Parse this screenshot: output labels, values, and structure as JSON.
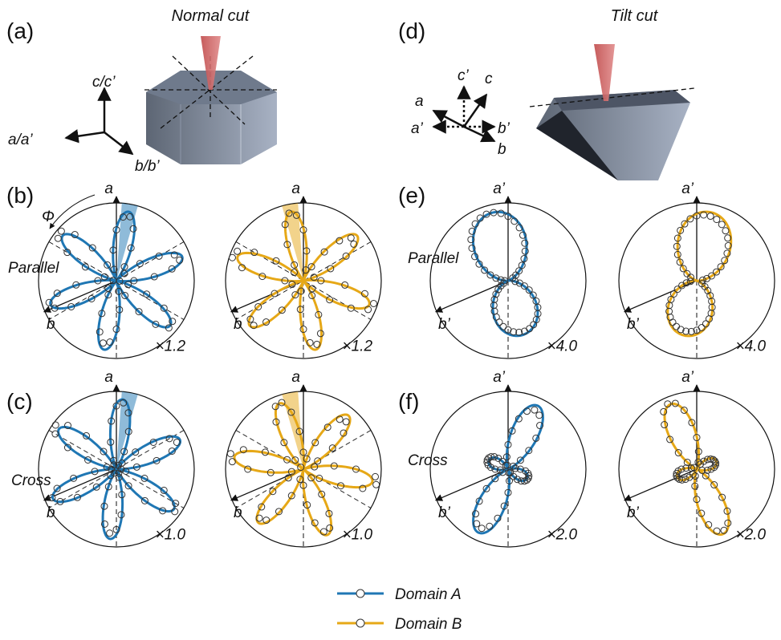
{
  "panels": {
    "a": {
      "label": "(a)",
      "title": "Normal cut",
      "axes": [
        "c/c’",
        "a/a’",
        "b/b’"
      ]
    },
    "d": {
      "label": "(d)",
      "title": "Tilt cut",
      "axes": [
        "c’",
        "c",
        "a",
        "a’",
        "b’",
        "b"
      ]
    }
  },
  "rows": [
    {
      "label": "(b)",
      "mode": "Parallel",
      "plots": [
        {
          "top": "a",
          "side": "b",
          "scale": "×1.2"
        },
        {
          "top": "a",
          "side": "b",
          "scale": "×1.2"
        }
      ]
    },
    {
      "label": "(c)",
      "mode": "Cross",
      "plots": [
        {
          "top": "a",
          "side": "b",
          "scale": "×1.0"
        },
        {
          "top": "a",
          "side": "b",
          "scale": "×1.0"
        }
      ]
    },
    {
      "label": "(e)",
      "mode": "Parallel",
      "plots": [
        {
          "top": "a’",
          "side": "b’",
          "scale": "×4.0"
        },
        {
          "top": "a’",
          "side": "b’",
          "scale": "×4.0"
        }
      ]
    },
    {
      "label": "(f)",
      "mode": "Cross",
      "plots": [
        {
          "top": "a’",
          "side": "b’",
          "scale": "×2.0"
        },
        {
          "top": "a’",
          "side": "b’",
          "scale": "×2.0"
        }
      ]
    }
  ],
  "phi": "Φ",
  "legend": [
    "Domain A",
    "Domain B"
  ]
}
